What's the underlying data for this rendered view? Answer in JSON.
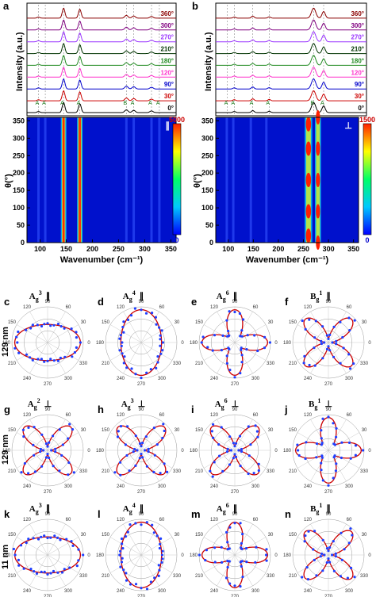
{
  "chart_data": [
    {
      "type": "line",
      "panel": "a",
      "polarization": "∥",
      "ylabel": "Intensity (a.u.)",
      "x_range": [
        75,
        360
      ],
      "series": [
        {
          "name": "360°",
          "color": "#8b0000"
        },
        {
          "name": "300°",
          "color": "#800080"
        },
        {
          "name": "270°",
          "color": "#9933ff"
        },
        {
          "name": "210°",
          "color": "#003300"
        },
        {
          "name": "180°",
          "color": "#228b22"
        },
        {
          "name": "120°",
          "color": "#ff33cc"
        },
        {
          "name": "90°",
          "color": "#0000cc"
        },
        {
          "name": "30°",
          "color": "#cc0000"
        },
        {
          "name": "0°",
          "color": "#000000"
        }
      ],
      "peaks_cm1": [
        97,
        110,
        145,
        176,
        265,
        279,
        313,
        328
      ],
      "mode_labels": [
        "A",
        "A",
        "A",
        "A",
        "B",
        "A",
        "A",
        "A"
      ]
    },
    {
      "type": "heatmap",
      "panel": "a",
      "xlabel": "Wavenumber (cm⁻¹)",
      "ylabel": "θ(°)",
      "x_ticks": [
        100,
        150,
        200,
        250,
        300,
        350
      ],
      "y_ticks": [
        0,
        50,
        100,
        150,
        200,
        250,
        300,
        350
      ],
      "colorbar": [
        "0",
        "5000"
      ],
      "symbol": "∥"
    },
    {
      "type": "line",
      "panel": "b",
      "polarization": "⊥",
      "ylabel": "Intensity (a.u.)",
      "x_range": [
        75,
        360
      ],
      "series": [
        {
          "name": "360°",
          "color": "#8b0000"
        },
        {
          "name": "300°",
          "color": "#800080"
        },
        {
          "name": "270°",
          "color": "#9933ff"
        },
        {
          "name": "210°",
          "color": "#003300"
        },
        {
          "name": "180°",
          "color": "#228b22"
        },
        {
          "name": "120°",
          "color": "#ff33cc"
        },
        {
          "name": "90°",
          "color": "#0000cc"
        },
        {
          "name": "30°",
          "color": "#cc0000"
        },
        {
          "name": "0°",
          "color": "#000000"
        }
      ],
      "peaks_cm1": [
        97,
        110,
        145,
        176,
        260,
        279
      ],
      "mode_labels": [
        "A",
        "A",
        "A",
        "A",
        "B",
        "A"
      ]
    },
    {
      "type": "heatmap",
      "panel": "b",
      "xlabel": "Wavenumber (cm⁻¹)",
      "ylabel": "θ(°)",
      "x_ticks": [
        100,
        150,
        200,
        250,
        300,
        350
      ],
      "y_ticks": [
        0,
        50,
        100,
        150,
        200,
        250,
        300,
        350
      ],
      "colorbar": [
        "0",
        "1500"
      ],
      "symbol": "⊥"
    },
    {
      "type": "scatter",
      "subtype": "polar",
      "angle_ticks": [
        "90",
        "60",
        "30",
        "0",
        "330",
        "300",
        "270",
        "240",
        "210",
        "180",
        "150",
        "120"
      ],
      "row_labels": [
        "129 nm",
        "129 nm",
        "11 nm"
      ],
      "panels": [
        {
          "letter": "c",
          "mode": "A",
          "sub": "g",
          "sup": "3",
          "pol": "∥",
          "shape": "ellipse_h"
        },
        {
          "letter": "d",
          "mode": "A",
          "sub": "g",
          "sup": "4",
          "pol": "∥",
          "shape": "ellipse_v"
        },
        {
          "letter": "e",
          "mode": "A",
          "sub": "g",
          "sup": "6",
          "pol": "∥",
          "shape": "cross"
        },
        {
          "letter": "f",
          "mode": "B",
          "sub": "g",
          "sup": "1",
          "pol": "∥",
          "shape": "x4"
        },
        {
          "letter": "g",
          "mode": "A",
          "sub": "g",
          "sup": "2",
          "pol": "⊥",
          "shape": "x4"
        },
        {
          "letter": "h",
          "mode": "A",
          "sub": "g",
          "sup": "3",
          "pol": "⊥",
          "shape": "x4"
        },
        {
          "letter": "i",
          "mode": "A",
          "sub": "g",
          "sup": "6",
          "pol": "⊥",
          "shape": "x4"
        },
        {
          "letter": "j",
          "mode": "B",
          "sub": "g",
          "sup": "1",
          "pol": "⊥",
          "shape": "cross"
        },
        {
          "letter": "k",
          "mode": "A",
          "sub": "g",
          "sup": "3",
          "pol": "∥",
          "shape": "ellipse_h"
        },
        {
          "letter": "l",
          "mode": "A",
          "sub": "g",
          "sup": "4",
          "pol": "∥",
          "shape": "ellipse_v"
        },
        {
          "letter": "m",
          "mode": "A",
          "sub": "g",
          "sup": "6",
          "pol": "∥",
          "shape": "cross"
        },
        {
          "letter": "n",
          "mode": "B",
          "sub": "g",
          "sup": "1",
          "pol": "∥",
          "shape": "x4"
        }
      ]
    }
  ],
  "colors": {
    "fit": "#cc0000",
    "points": "#1f3fff"
  }
}
